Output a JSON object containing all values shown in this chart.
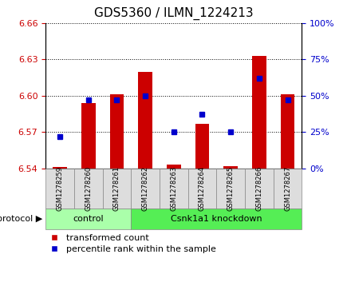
{
  "title": "GDS5360 / ILMN_1224213",
  "samples": [
    "GSM1278259",
    "GSM1278260",
    "GSM1278261",
    "GSM1278262",
    "GSM1278263",
    "GSM1278264",
    "GSM1278265",
    "GSM1278266",
    "GSM1278267"
  ],
  "transformed_count": [
    6.541,
    6.594,
    6.601,
    6.62,
    6.543,
    6.577,
    6.542,
    6.633,
    6.601
  ],
  "percentile_rank": [
    22,
    47,
    47,
    50,
    25,
    37,
    25,
    62,
    47
  ],
  "ylim_left": [
    6.54,
    6.66
  ],
  "ylim_right": [
    0,
    100
  ],
  "yticks_left": [
    6.54,
    6.57,
    6.6,
    6.63,
    6.66
  ],
  "yticks_right": [
    0,
    25,
    50,
    75,
    100
  ],
  "bar_color": "#cc0000",
  "dot_color": "#0000cc",
  "bar_base": 6.54,
  "groups": [
    {
      "label": "control",
      "indices": [
        0,
        1,
        2
      ],
      "color": "#aaffaa"
    },
    {
      "label": "Csnk1a1 knockdown",
      "indices": [
        3,
        4,
        5,
        6,
        7,
        8
      ],
      "color": "#55ee55"
    }
  ],
  "protocol_label": "protocol",
  "bg_color": "#ffffff",
  "tick_bg_color": "#dddddd",
  "grid_color": "#000000",
  "left_tick_color": "#cc0000",
  "right_tick_color": "#0000cc",
  "title_fontsize": 11,
  "tick_fontsize": 8,
  "legend_fontsize": 8
}
